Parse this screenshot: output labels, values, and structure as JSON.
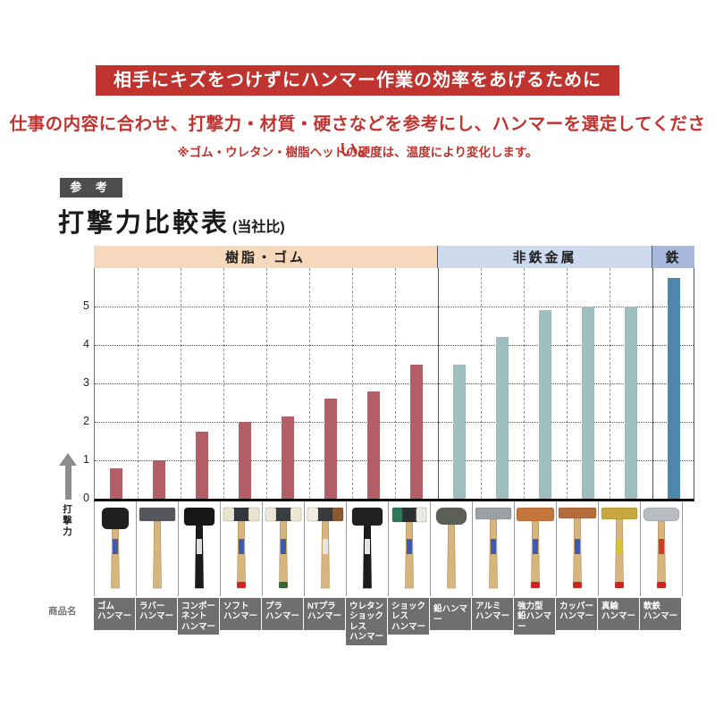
{
  "banner": {
    "title": "相手にキズをつけずにハンマー作業の効率をあげるために",
    "bg": "#c1332e"
  },
  "lead": "仕事の内容に合わせ、打撃力・材質・硬さなどを参考にし、ハンマーを選定してください。",
  "note": "※ゴム・ウレタン・樹脂ヘッドの硬度は、温度により変化します。",
  "reference_badge": "参 考",
  "chart_title": {
    "main": "打撃力比較表",
    "sub": "(当社比)"
  },
  "axis": {
    "y_label": "打撃力",
    "row_label": "商品名",
    "y_ticks": [
      0,
      1,
      2,
      3,
      4,
      5
    ],
    "y_max": 6
  },
  "sections": [
    {
      "label": "樹脂・ゴム",
      "bg": "#f6d8bb",
      "bar_color": "#b25f68",
      "span": 8
    },
    {
      "label": "非鉄金属",
      "bg": "#cdd9ec",
      "bar_color": "#9dbdbe",
      "span": 5
    },
    {
      "label": "鉄",
      "bg": "#a9b9dd",
      "bar_color": "#4d88ac",
      "span": 1
    }
  ],
  "chart_data": {
    "type": "bar",
    "title": "打撃力比較表(当社比)",
    "xlabel": "商品名",
    "ylabel": "打撃力",
    "ylim": [
      0,
      6
    ],
    "grid": true,
    "categories": [
      "ゴムハンマー",
      "ラバーハンマー",
      "コンポーネントハンマー",
      "ソフトハンマー",
      "プラハンマー",
      "NTプラハンマー",
      "ウレタンショックレスハンマー",
      "ショックレスハンマー",
      "鉛ハンマー",
      "アルミハンマー",
      "強力型鉛ハンマー",
      "カッパーハンマー",
      "真鍮ハンマー",
      "軟鉄ハンマー"
    ],
    "values": [
      0.8,
      1.0,
      1.75,
      2.0,
      2.15,
      2.6,
      2.8,
      3.5,
      3.5,
      4.2,
      4.9,
      5.0,
      5.0,
      5.75
    ],
    "groups": [
      {
        "label": "樹脂・ゴム",
        "count": 8
      },
      {
        "label": "非鉄金属",
        "count": 5
      },
      {
        "label": "鉄",
        "count": 1
      }
    ]
  },
  "products": [
    {
      "name_lines": [
        "ゴム",
        "ハンマー"
      ],
      "section": 0,
      "hammer": {
        "head": [
          "#1f1f22"
        ],
        "headW": 30,
        "headH": 24,
        "rx": 6,
        "handle": "#d8b57c",
        "label": "#3a55b0",
        "cap": null
      }
    },
    {
      "name_lines": [
        "ラバー",
        "ハンマー"
      ],
      "section": 0,
      "hammer": {
        "head": [
          "#56575c"
        ],
        "headW": 40,
        "headH": 15,
        "rx": 2,
        "handle": "#d8b57c",
        "label": null,
        "cap": null
      }
    },
    {
      "name_lines": [
        "コンポーネント",
        "ハンマー"
      ],
      "section": 0,
      "hammer": {
        "head": [
          "#17171a"
        ],
        "headW": 34,
        "headH": 20,
        "rx": 4,
        "handle": "#1b1b1e",
        "label": "#e8e8e8",
        "cap": null
      }
    },
    {
      "name_lines": [
        "ソフト",
        "ハンマー"
      ],
      "section": 0,
      "hammer": {
        "head": [
          "#e9e3d0",
          "#34373b",
          "#e9e3d0"
        ],
        "headW": 40,
        "headH": 15,
        "rx": 2,
        "handle": "#d8b57c",
        "label": "#3a55b0",
        "cap": "#cf2222"
      }
    },
    {
      "name_lines": [
        "プラ",
        "ハンマー"
      ],
      "section": 0,
      "hammer": {
        "head": [
          "#ece6d3",
          "#3a3d40",
          "#ece6d3"
        ],
        "headW": 40,
        "headH": 15,
        "rx": 2,
        "handle": "#d8b57c",
        "label": "#3a55b0",
        "cap": "#2e6b34"
      }
    },
    {
      "name_lines": [
        "NTプラ",
        "ハンマー"
      ],
      "section": 0,
      "hammer": {
        "head": [
          "#f1ede0",
          "#3a3a3a",
          "#8a5a32"
        ],
        "headW": 40,
        "headH": 15,
        "rx": 2,
        "handle": "#d8b57c",
        "label": "#e8e8e8",
        "cap": null
      }
    },
    {
      "name_lines": [
        "ウレタン",
        "ショックレス",
        "ハンマー"
      ],
      "section": 0,
      "hammer": {
        "head": [
          "#212124"
        ],
        "headW": 34,
        "headH": 20,
        "rx": 4,
        "handle": "#1d1d20",
        "label": "#f0f0f0",
        "cap": null
      }
    },
    {
      "name_lines": [
        "ショックレス",
        "ハンマー"
      ],
      "section": 0,
      "hammer": {
        "head": [
          "#2c7a57",
          "#2b2e33",
          "#e8e8e4"
        ],
        "headW": 38,
        "headH": 16,
        "rx": 2,
        "handle": "#d8b57c",
        "label": "#3a55b0",
        "cap": null
      }
    },
    {
      "name_lines": [
        "鉛ハンマー"
      ],
      "section": 1,
      "hammer": {
        "head": [
          "#5c5f55"
        ],
        "headW": 34,
        "headH": 19,
        "rx": 8,
        "handle": "#d8b57c",
        "label": null,
        "cap": null
      }
    },
    {
      "name_lines": [
        "アルミ",
        "ハンマー"
      ],
      "section": 1,
      "hammer": {
        "head": [
          "#9aa0a4"
        ],
        "headW": 40,
        "headH": 13,
        "rx": 2,
        "handle": "#d8b57c",
        "label": "#3a55b0",
        "cap": null
      }
    },
    {
      "name_lines": [
        "強力型",
        "鉛ハンマー"
      ],
      "section": 1,
      "hammer": {
        "head": [
          "#c3763c"
        ],
        "headW": 42,
        "headH": 15,
        "rx": 3,
        "handle": "#d8b57c",
        "label": "#3a55b0",
        "cap": "#cf2222"
      }
    },
    {
      "name_lines": [
        "カッパー",
        "ハンマー"
      ],
      "section": 1,
      "hammer": {
        "head": [
          "#b66b3a"
        ],
        "headW": 42,
        "headH": 12,
        "rx": 2,
        "handle": "#d8b57c",
        "label": "#3a55b0",
        "cap": "#cf2222"
      }
    },
    {
      "name_lines": [
        "真鍮",
        "ハンマー"
      ],
      "section": 1,
      "hammer": {
        "head": [
          "#c8a73f"
        ],
        "headW": 40,
        "headH": 13,
        "rx": 2,
        "handle": "#d8b57c",
        "label": "#d8c52a",
        "cap": "#cf2222"
      }
    },
    {
      "name_lines": [
        "軟鉄",
        "ハンマー"
      ],
      "section": 2,
      "hammer": {
        "head": [
          "#b9bcc0"
        ],
        "headW": 40,
        "headH": 15,
        "rx": 6,
        "handle": "#d8b57c",
        "label": "#c23a2e",
        "cap": "#cf2222"
      }
    }
  ]
}
